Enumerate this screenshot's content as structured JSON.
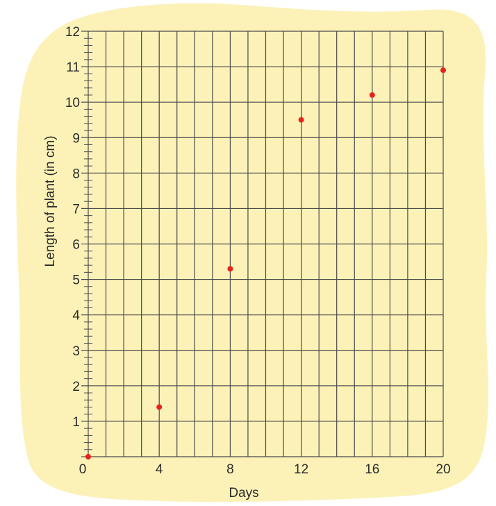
{
  "colors": {
    "background_blob": "#fcf2b8",
    "grid": "#4a4a4a",
    "point": "#e8231c"
  },
  "chart_data": {
    "type": "scatter",
    "xlabel": "Days",
    "ylabel": "Length of plant (in cm)",
    "xlim": [
      0,
      20
    ],
    "ylim": [
      0,
      12
    ],
    "x_ticks": [
      "0",
      "4",
      "8",
      "12",
      "16",
      "20"
    ],
    "y_ticks": [
      "1",
      "2",
      "3",
      "4",
      "5",
      "6",
      "7",
      "8",
      "9",
      "10",
      "11",
      "12"
    ],
    "grid": true,
    "x_minor_step": 1,
    "y_minor_step": 0.2,
    "points": [
      {
        "x": 0,
        "y": 0
      },
      {
        "x": 4,
        "y": 1.4
      },
      {
        "x": 8,
        "y": 5.3
      },
      {
        "x": 12,
        "y": 9.5
      },
      {
        "x": 16,
        "y": 10.2
      },
      {
        "x": 20,
        "y": 10.9
      }
    ]
  }
}
